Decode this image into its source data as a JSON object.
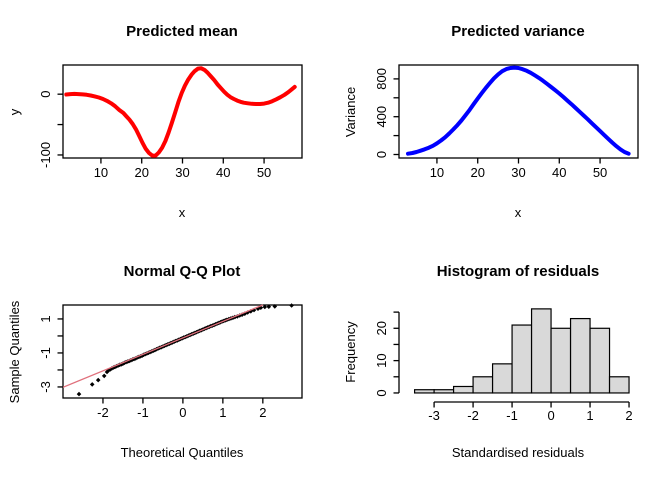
{
  "figure": {
    "background": "#ffffff",
    "foreground": "#000000"
  },
  "chart_data": [
    {
      "id": "predicted-mean",
      "type": "line",
      "title": "Predicted mean",
      "xlabel": "x",
      "ylabel": "y",
      "color": "#ff0000",
      "line_width": 4,
      "xlim": [
        0.7,
        59.3
      ],
      "ylim": [
        -105,
        48
      ],
      "xticks": [
        {
          "v": 10,
          "label": "10"
        },
        {
          "v": 20,
          "label": "20"
        },
        {
          "v": 30,
          "label": "30"
        },
        {
          "v": 40,
          "label": "40"
        },
        {
          "v": 50,
          "label": "50"
        }
      ],
      "yticks": [
        {
          "v": -100,
          "label": "-100"
        },
        {
          "v": -50,
          "label": ""
        },
        {
          "v": 0,
          "label": "0"
        }
      ],
      "points": [
        [
          1.5,
          -0.5
        ],
        [
          2.5,
          0.2
        ],
        [
          3.5,
          0.5
        ],
        [
          4.5,
          0.2
        ],
        [
          5.5,
          -0.3
        ],
        [
          6.5,
          -1
        ],
        [
          7.5,
          -2.2
        ],
        [
          8.5,
          -3.6
        ],
        [
          9.5,
          -5.5
        ],
        [
          10.5,
          -8
        ],
        [
          11.5,
          -11
        ],
        [
          12.5,
          -15
        ],
        [
          13.5,
          -20
        ],
        [
          14.5,
          -26
        ],
        [
          15.5,
          -31
        ],
        [
          16.2,
          -36
        ],
        [
          17,
          -42
        ],
        [
          17.8,
          -49
        ],
        [
          18.6,
          -58
        ],
        [
          19.4,
          -69
        ],
        [
          20.2,
          -80
        ],
        [
          21,
          -90
        ],
        [
          21.8,
          -97
        ],
        [
          22.6,
          -101
        ],
        [
          23.4,
          -101
        ],
        [
          24.2,
          -96
        ],
        [
          25,
          -88
        ],
        [
          25.8,
          -77
        ],
        [
          26.6,
          -63
        ],
        [
          27.4,
          -47
        ],
        [
          28.2,
          -30
        ],
        [
          29,
          -13
        ],
        [
          29.8,
          2
        ],
        [
          30.6,
          14
        ],
        [
          31.4,
          24
        ],
        [
          32.2,
          32
        ],
        [
          33,
          38
        ],
        [
          33.8,
          42
        ],
        [
          34.6,
          42.5
        ],
        [
          35.4,
          40
        ],
        [
          36.2,
          35
        ],
        [
          37,
          29
        ],
        [
          37.8,
          23
        ],
        [
          38.6,
          16
        ],
        [
          39.4,
          10
        ],
        [
          40.2,
          4
        ],
        [
          41,
          -1
        ],
        [
          41.8,
          -5
        ],
        [
          42.6,
          -8
        ],
        [
          43.4,
          -10.5
        ],
        [
          44.2,
          -12.5
        ],
        [
          45,
          -14
        ],
        [
          46,
          -15
        ],
        [
          47,
          -15.8
        ],
        [
          48,
          -16.2
        ],
        [
          49,
          -16.2
        ],
        [
          50,
          -15.5
        ],
        [
          51,
          -14
        ],
        [
          52,
          -11.5
        ],
        [
          53,
          -8.5
        ],
        [
          54,
          -5
        ],
        [
          55,
          -1
        ],
        [
          56,
          3.5
        ],
        [
          56.8,
          8
        ],
        [
          57.5,
          12
        ]
      ]
    },
    {
      "id": "predicted-variance",
      "type": "line",
      "title": "Predicted variance",
      "xlabel": "x",
      "ylabel": "Variance",
      "color": "#0000ff",
      "line_width": 4,
      "xlim": [
        0.7,
        59.3
      ],
      "ylim": [
        -37,
        947
      ],
      "xticks": [
        {
          "v": 10,
          "label": "10"
        },
        {
          "v": 20,
          "label": "20"
        },
        {
          "v": 30,
          "label": "30"
        },
        {
          "v": 40,
          "label": "40"
        },
        {
          "v": 50,
          "label": "50"
        }
      ],
      "yticks": [
        {
          "v": 0,
          "label": "0"
        },
        {
          "v": 200,
          "label": ""
        },
        {
          "v": 400,
          "label": "400"
        },
        {
          "v": 600,
          "label": ""
        },
        {
          "v": 800,
          "label": "800"
        }
      ],
      "points": [
        [
          2.9,
          8
        ],
        [
          4,
          16
        ],
        [
          5,
          26
        ],
        [
          6,
          40
        ],
        [
          7,
          55
        ],
        [
          8,
          72
        ],
        [
          9,
          92
        ],
        [
          10,
          118
        ],
        [
          11,
          148
        ],
        [
          12,
          182
        ],
        [
          13,
          222
        ],
        [
          14,
          265
        ],
        [
          15,
          310
        ],
        [
          16,
          360
        ],
        [
          17,
          415
        ],
        [
          18,
          472
        ],
        [
          19,
          532
        ],
        [
          20,
          592
        ],
        [
          21,
          650
        ],
        [
          22,
          706
        ],
        [
          23,
          758
        ],
        [
          24,
          806
        ],
        [
          25,
          848
        ],
        [
          26,
          881
        ],
        [
          27,
          904
        ],
        [
          28,
          915
        ],
        [
          29,
          919
        ],
        [
          30,
          915
        ],
        [
          31,
          903
        ],
        [
          32,
          886
        ],
        [
          33,
          864
        ],
        [
          34,
          838
        ],
        [
          35,
          810
        ],
        [
          36,
          780
        ],
        [
          37,
          748
        ],
        [
          38,
          714
        ],
        [
          39,
          680
        ],
        [
          40,
          645
        ],
        [
          41,
          608
        ],
        [
          42,
          570
        ],
        [
          43,
          532
        ],
        [
          44,
          492
        ],
        [
          45,
          452
        ],
        [
          46,
          412
        ],
        [
          47,
          372
        ],
        [
          48,
          330
        ],
        [
          49,
          289
        ],
        [
          50,
          248
        ],
        [
          51,
          207
        ],
        [
          52,
          166
        ],
        [
          53,
          126
        ],
        [
          54,
          88
        ],
        [
          55,
          54
        ],
        [
          56,
          26
        ],
        [
          57,
          8
        ]
      ]
    },
    {
      "id": "qq-plot",
      "type": "scatter",
      "title": "Normal Q-Q Plot",
      "xlabel": "Theoretical Quantiles",
      "ylabel": "Sample Quantiles",
      "point_color": "#000000",
      "ref_line": {
        "color": "#e0707c",
        "x1": -3.0,
        "y1": -3.02,
        "x2": 2.0,
        "y2": 1.82
      },
      "xlim": [
        -3.0,
        2.98
      ],
      "ylim": [
        -3.65,
        1.82
      ],
      "xticks": [
        {
          "v": -2,
          "label": "-2"
        },
        {
          "v": -1,
          "label": "-1"
        },
        {
          "v": 0,
          "label": "0"
        },
        {
          "v": 1,
          "label": "1"
        },
        {
          "v": 2,
          "label": "2"
        }
      ],
      "yticks": [
        {
          "v": -3,
          "label": "-3"
        },
        {
          "v": -2,
          "label": ""
        },
        {
          "v": -1,
          "label": "-1"
        },
        {
          "v": 0,
          "label": ""
        },
        {
          "v": 1,
          "label": "1"
        }
      ],
      "points": [
        [
          -2.6,
          -3.42
        ],
        [
          -2.27,
          -2.85
        ],
        [
          -2.12,
          -2.6
        ],
        [
          -1.97,
          -2.35
        ],
        [
          -1.9,
          -2.12
        ],
        [
          -1.86,
          -2.02
        ],
        [
          -1.82,
          -1.97
        ],
        [
          -1.78,
          -1.91
        ],
        [
          -1.74,
          -1.86
        ],
        [
          -1.7,
          -1.82
        ],
        [
          -1.66,
          -1.78
        ],
        [
          -1.62,
          -1.74
        ],
        [
          -1.58,
          -1.7
        ],
        [
          -1.54,
          -1.67
        ],
        [
          -1.5,
          -1.63
        ],
        [
          -1.46,
          -1.58
        ],
        [
          -1.42,
          -1.54
        ],
        [
          -1.38,
          -1.51
        ],
        [
          -1.34,
          -1.47
        ],
        [
          -1.3,
          -1.43
        ],
        [
          -1.26,
          -1.39
        ],
        [
          -1.22,
          -1.35
        ],
        [
          -1.18,
          -1.32
        ],
        [
          -1.14,
          -1.27
        ],
        [
          -1.1,
          -1.23
        ],
        [
          -1.06,
          -1.2
        ],
        [
          -1.02,
          -1.16
        ],
        [
          -0.98,
          -1.11
        ],
        [
          -0.94,
          -1.07
        ],
        [
          -0.9,
          -1.03
        ],
        [
          -0.86,
          -0.99
        ],
        [
          -0.82,
          -0.95
        ],
        [
          -0.78,
          -0.91
        ],
        [
          -0.74,
          -0.87
        ],
        [
          -0.7,
          -0.83
        ],
        [
          -0.66,
          -0.78
        ],
        [
          -0.62,
          -0.74
        ],
        [
          -0.58,
          -0.7
        ],
        [
          -0.54,
          -0.66
        ],
        [
          -0.5,
          -0.62
        ],
        [
          -0.46,
          -0.58
        ],
        [
          -0.42,
          -0.54
        ],
        [
          -0.38,
          -0.5
        ],
        [
          -0.34,
          -0.46
        ],
        [
          -0.3,
          -0.42
        ],
        [
          -0.26,
          -0.38
        ],
        [
          -0.22,
          -0.34
        ],
        [
          -0.18,
          -0.3
        ],
        [
          -0.14,
          -0.26
        ],
        [
          -0.1,
          -0.22
        ],
        [
          -0.06,
          -0.18
        ],
        [
          -0.02,
          -0.14
        ],
        [
          0.02,
          -0.1
        ],
        [
          0.06,
          -0.06
        ],
        [
          0.1,
          -0.02
        ],
        [
          0.14,
          0.02
        ],
        [
          0.18,
          0.06
        ],
        [
          0.22,
          0.1
        ],
        [
          0.26,
          0.14
        ],
        [
          0.3,
          0.18
        ],
        [
          0.34,
          0.22
        ],
        [
          0.38,
          0.26
        ],
        [
          0.42,
          0.3
        ],
        [
          0.46,
          0.34
        ],
        [
          0.5,
          0.38
        ],
        [
          0.54,
          0.42
        ],
        [
          0.58,
          0.46
        ],
        [
          0.62,
          0.5
        ],
        [
          0.66,
          0.54
        ],
        [
          0.7,
          0.58
        ],
        [
          0.74,
          0.61
        ],
        [
          0.78,
          0.65
        ],
        [
          0.82,
          0.69
        ],
        [
          0.86,
          0.73
        ],
        [
          0.9,
          0.77
        ],
        [
          0.94,
          0.81
        ],
        [
          0.98,
          0.85
        ],
        [
          1.02,
          0.88
        ],
        [
          1.06,
          0.92
        ],
        [
          1.1,
          0.95
        ],
        [
          1.15,
          0.99
        ],
        [
          1.2,
          1.03
        ],
        [
          1.25,
          1.07
        ],
        [
          1.3,
          1.11
        ],
        [
          1.36,
          1.15
        ],
        [
          1.42,
          1.2
        ],
        [
          1.48,
          1.25
        ],
        [
          1.55,
          1.31
        ],
        [
          1.62,
          1.38
        ],
        [
          1.7,
          1.45
        ],
        [
          1.78,
          1.52
        ],
        [
          1.88,
          1.6
        ],
        [
          1.95,
          1.66
        ],
        [
          2.05,
          1.7
        ],
        [
          2.15,
          1.72
        ],
        [
          2.3,
          1.74
        ],
        [
          2.72,
          1.79
        ]
      ]
    },
    {
      "id": "residual-histogram",
      "type": "hist",
      "title": "Histogram of residuals",
      "xlabel": "Standardised residuals",
      "ylabel": "Frequency",
      "bar_fill": "#d9d9d9",
      "bar_border": "#000000",
      "breaks_start": -3.5,
      "bin_width": 0.5,
      "counts": [
        1,
        1,
        2,
        5,
        9,
        21,
        26,
        20,
        23,
        20,
        5
      ],
      "xlim": [
        -3.9,
        2.23
      ],
      "ylim": [
        -1.56,
        27.2
      ],
      "xticks": [
        {
          "v": -3,
          "label": "-3"
        },
        {
          "v": -2,
          "label": "-2"
        },
        {
          "v": -1,
          "label": "-1"
        },
        {
          "v": 0,
          "label": "0"
        },
        {
          "v": 1,
          "label": "1"
        },
        {
          "v": 2,
          "label": "2"
        }
      ],
      "yticks": [
        {
          "v": 0,
          "label": "0"
        },
        {
          "v": 5,
          "label": ""
        },
        {
          "v": 10,
          "label": "10"
        },
        {
          "v": 15,
          "label": ""
        },
        {
          "v": 20,
          "label": "20"
        },
        {
          "v": 25,
          "label": ""
        }
      ]
    }
  ]
}
